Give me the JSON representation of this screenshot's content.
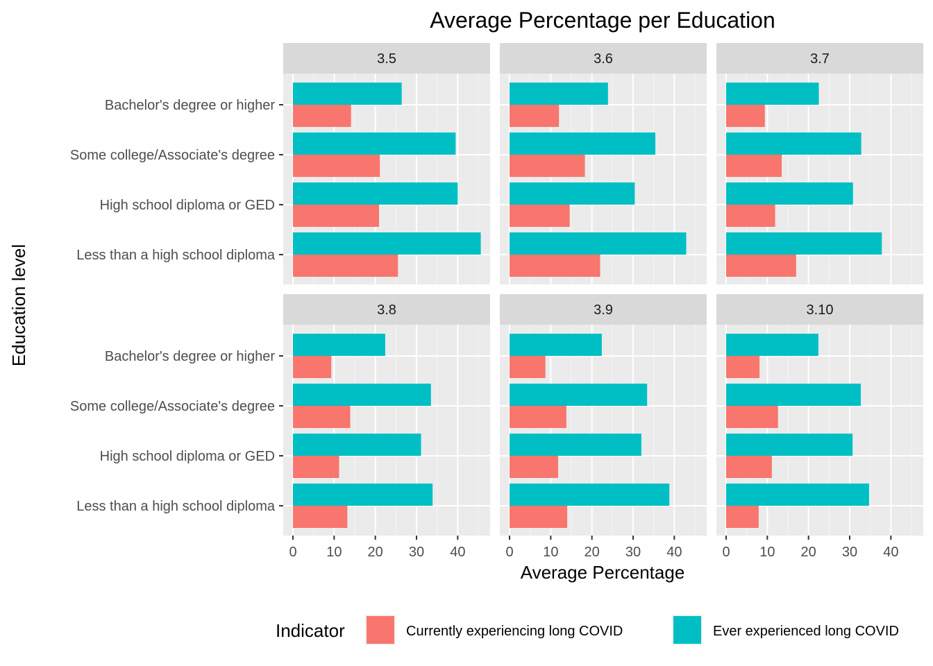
{
  "chart_data": {
    "type": "bar",
    "orientation": "horizontal",
    "title": "Average Percentage per Education",
    "xlabel": "Average Percentage",
    "ylabel": "Education level",
    "xlim": [
      0,
      46
    ],
    "x_ticks": [
      0,
      10,
      20,
      30,
      40
    ],
    "categories": [
      "Bachelor's degree or higher",
      "Some college/Associate's degree",
      "High school diploma or GED",
      "Less than a high school diploma"
    ],
    "legend": {
      "title": "Indicator",
      "position": "bottom",
      "entries": [
        {
          "name": "Currently experiencing long COVID",
          "color": "#F8766D"
        },
        {
          "name": "Ever experienced long COVID",
          "color": "#00BFC4"
        }
      ]
    },
    "facets": [
      {
        "label": "3.5",
        "series": [
          {
            "name": "Currently experiencing long COVID",
            "values": [
              14.1,
              21.1,
              20.9,
              25.5
            ]
          },
          {
            "name": "Ever experienced long COVID",
            "values": [
              26.4,
              39.5,
              40.0,
              45.6
            ]
          }
        ]
      },
      {
        "label": "3.6",
        "series": [
          {
            "name": "Currently experiencing long COVID",
            "values": [
              12.0,
              18.3,
              14.6,
              22.0
            ]
          },
          {
            "name": "Ever experienced long COVID",
            "values": [
              23.9,
              35.4,
              30.4,
              42.9
            ]
          }
        ]
      },
      {
        "label": "3.7",
        "series": [
          {
            "name": "Currently experiencing long COVID",
            "values": [
              9.4,
              13.5,
              11.9,
              17.0
            ]
          },
          {
            "name": "Ever experienced long COVID",
            "values": [
              22.5,
              32.8,
              30.8,
              37.8
            ]
          }
        ]
      },
      {
        "label": "3.8",
        "series": [
          {
            "name": "Currently experiencing long COVID",
            "values": [
              9.3,
              13.9,
              11.2,
              13.2
            ]
          },
          {
            "name": "Ever experienced long COVID",
            "values": [
              22.4,
              33.5,
              31.1,
              33.9
            ]
          }
        ]
      },
      {
        "label": "3.9",
        "series": [
          {
            "name": "Currently experiencing long COVID",
            "values": [
              8.7,
              13.8,
              11.8,
              14.0
            ]
          },
          {
            "name": "Ever experienced long COVID",
            "values": [
              22.4,
              33.4,
              32.0,
              38.8
            ]
          }
        ]
      },
      {
        "label": "3.10",
        "series": [
          {
            "name": "Currently experiencing long COVID",
            "values": [
              8.1,
              12.6,
              11.1,
              7.9
            ]
          },
          {
            "name": "Ever experienced long COVID",
            "values": [
              22.4,
              32.7,
              30.7,
              34.7
            ]
          }
        ]
      }
    ]
  }
}
